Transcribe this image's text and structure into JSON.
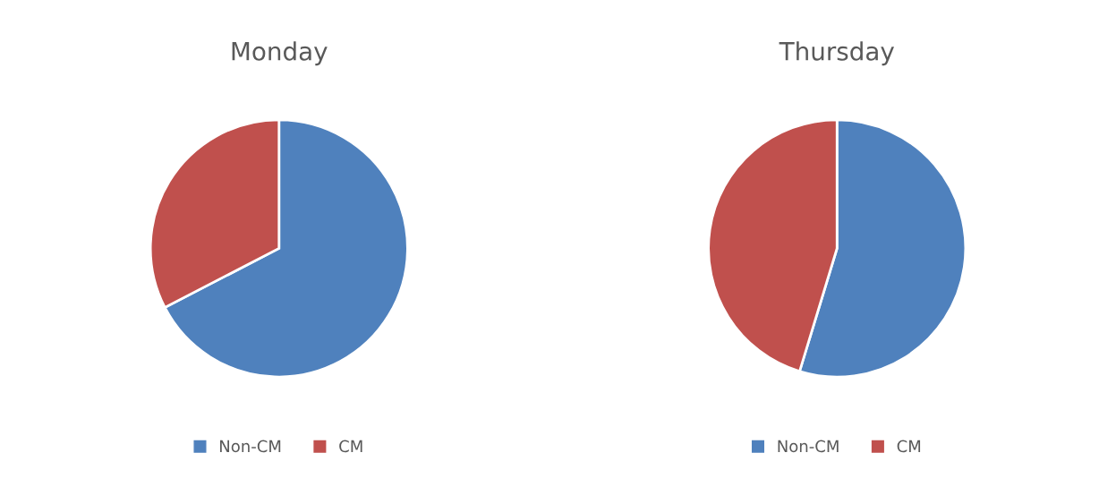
{
  "chart_data": [
    {
      "type": "pie",
      "title": "Monday",
      "categories": [
        "Non-CM",
        "CM"
      ],
      "values": [
        67.4,
        32.6
      ],
      "colors": [
        "#4f81bd",
        "#c0504d"
      ],
      "legend": "bottom"
    },
    {
      "type": "pie",
      "title": "Thursday",
      "categories": [
        "Non-CM",
        "CM"
      ],
      "values": [
        54.7,
        45.3
      ],
      "colors": [
        "#4f81bd",
        "#c0504d"
      ],
      "legend": "bottom"
    }
  ]
}
